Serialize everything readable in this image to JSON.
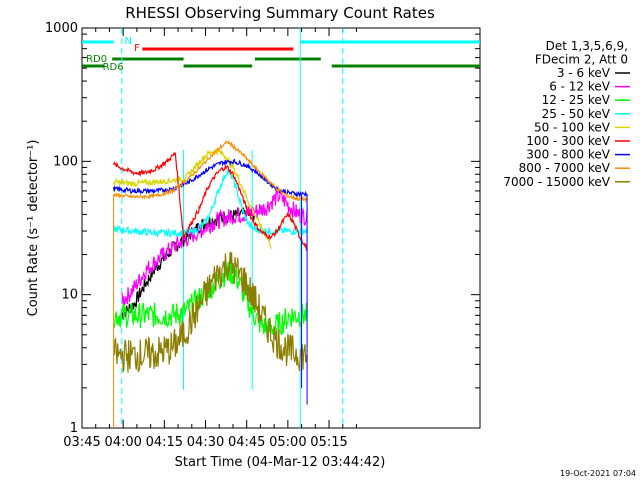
{
  "chart_data": {
    "type": "line",
    "title": "RHESSI Observing Summary Count Rates",
    "xlabel": "Start Time (04-Mar-12 03:44:42)",
    "ylabel": "Count Rate (s⁻¹ detector⁻¹)",
    "yscale": "log",
    "ylim": [
      1,
      1000
    ],
    "xlim_min": [
      225,
      370
    ],
    "xticks": [
      {
        "min": 225,
        "label": "03:45"
      },
      {
        "min": 240,
        "label": "04:00"
      },
      {
        "min": 255,
        "label": "04:15"
      },
      {
        "min": 270,
        "label": "04:30"
      },
      {
        "min": 285,
        "label": "04:45"
      },
      {
        "min": 300,
        "label": "05:00"
      },
      {
        "min": 315,
        "label": "05:15"
      }
    ],
    "yticks": [
      {
        "value": 1,
        "label": "1"
      },
      {
        "value": 10,
        "label": "10"
      },
      {
        "value": 100,
        "label": "100"
      },
      {
        "value": 1000,
        "label": "1000"
      }
    ],
    "legend": {
      "position": "right",
      "header": [
        "Det 1,3,5,6,9,",
        "FDecim 2, Att 0"
      ],
      "entries": [
        {
          "label": "3 - 6 keV",
          "color": "#000000"
        },
        {
          "label": "6 - 12 keV",
          "color": "#ff00ff"
        },
        {
          "label": "12 - 25 keV",
          "color": "#00ff00"
        },
        {
          "label": "25 - 50 keV",
          "color": "#00ffff"
        },
        {
          "label": "50 - 100 keV",
          "color": "#d8d800"
        },
        {
          "label": "100 - 300 keV",
          "color": "#ff0000"
        },
        {
          "label": "300 - 800 keV",
          "color": "#0000ff"
        },
        {
          "label": "800 - 7000 keV",
          "color": "#ff8c00"
        },
        {
          "label": "7000 - 15000 keV",
          "color": "#8b7d00"
        }
      ]
    },
    "series": [
      {
        "name": "3 - 6 keV",
        "color": "#000000",
        "points": [
          [
            239.5,
            7
          ],
          [
            244,
            8.5
          ],
          [
            248,
            12
          ],
          [
            252,
            16
          ],
          [
            256,
            20
          ],
          [
            260,
            24
          ],
          [
            264,
            28
          ],
          [
            266,
            30
          ],
          [
            268,
            33
          ],
          [
            272,
            36
          ],
          [
            276,
            38
          ],
          [
            280,
            39
          ],
          [
            284,
            40
          ],
          [
            288,
            40
          ]
        ]
      },
      {
        "name": "6 - 12 keV",
        "color": "#ff00ff",
        "points": [
          [
            239.5,
            9
          ],
          [
            242,
            10
          ],
          [
            245,
            12
          ],
          [
            248,
            15
          ],
          [
            252,
            18
          ],
          [
            256,
            21
          ],
          [
            260,
            24
          ],
          [
            264,
            27
          ],
          [
            268,
            30
          ],
          [
            272,
            34
          ],
          [
            276,
            37
          ],
          [
            280,
            39
          ],
          [
            284,
            40
          ],
          [
            288,
            42
          ],
          [
            292,
            45
          ],
          [
            295,
            52
          ],
          [
            297,
            55
          ],
          [
            299,
            50
          ],
          [
            301,
            45
          ],
          [
            304,
            40
          ],
          [
            307,
            38
          ]
        ]
      },
      {
        "name": "12 - 25 keV",
        "color": "#00ff00",
        "points": [
          [
            236.5,
            7
          ],
          [
            244,
            7
          ],
          [
            252,
            7
          ],
          [
            258,
            7
          ],
          [
            263,
            7.5
          ],
          [
            267,
            9
          ],
          [
            271,
            11
          ],
          [
            275,
            13
          ],
          [
            278,
            15
          ],
          [
            281,
            14
          ],
          [
            284,
            10
          ],
          [
            287,
            7.5
          ],
          [
            290,
            6
          ],
          [
            293,
            5.5
          ],
          [
            297,
            6
          ],
          [
            301,
            7
          ],
          [
            307,
            7
          ]
        ]
      },
      {
        "name": "25 - 50 keV",
        "color": "#00ffff",
        "points": [
          [
            236.5,
            31
          ],
          [
            244,
            30
          ],
          [
            252,
            29
          ],
          [
            258,
            29
          ],
          [
            262,
            29
          ],
          [
            266,
            30
          ],
          [
            270,
            35
          ],
          [
            272,
            42
          ],
          [
            274,
            55
          ],
          [
            276,
            70
          ],
          [
            278,
            85
          ],
          [
            280,
            75
          ],
          [
            282,
            55
          ],
          [
            284,
            40
          ],
          [
            286,
            33
          ],
          [
            288,
            31
          ],
          [
            293,
            30
          ],
          [
            300,
            30
          ],
          [
            307,
            30
          ]
        ]
      },
      {
        "name": "50 - 100 keV",
        "color": "#d8d800",
        "points": [
          [
            236.5,
            70
          ],
          [
            244,
            68
          ],
          [
            252,
            70
          ],
          [
            258,
            72
          ],
          [
            262,
            74
          ],
          [
            264,
            80
          ],
          [
            266,
            90
          ],
          [
            268,
            100
          ],
          [
            270,
            110
          ],
          [
            272,
            118
          ],
          [
            274,
            120
          ],
          [
            276,
            115
          ],
          [
            278,
            105
          ],
          [
            280,
            90
          ],
          [
            282,
            75
          ],
          [
            284,
            60
          ],
          [
            286,
            48
          ],
          [
            288,
            40
          ],
          [
            290,
            33
          ],
          [
            292,
            28
          ],
          [
            294,
            23
          ]
        ]
      },
      {
        "name": "100 - 300 keV",
        "color": "#ff0000",
        "points": [
          [
            236.5,
            95
          ],
          [
            240,
            88
          ],
          [
            244,
            82
          ],
          [
            248,
            82
          ],
          [
            252,
            88
          ],
          [
            256,
            100
          ],
          [
            259,
            115
          ],
          [
            262,
            27
          ],
          [
            265,
            35
          ],
          [
            268,
            45
          ],
          [
            270,
            58
          ],
          [
            272,
            70
          ],
          [
            274,
            80
          ],
          [
            276,
            88
          ],
          [
            278,
            90
          ],
          [
            280,
            80
          ],
          [
            282,
            65
          ],
          [
            284,
            50
          ],
          [
            286,
            40
          ],
          [
            288,
            34
          ],
          [
            290,
            30
          ],
          [
            292,
            28
          ],
          [
            294,
            27
          ],
          [
            296,
            30
          ],
          [
            298,
            35
          ],
          [
            300,
            40
          ],
          [
            302,
            35
          ],
          [
            304,
            28
          ],
          [
            307,
            22
          ]
        ]
      },
      {
        "name": "300 - 800 keV",
        "color": "#0000ff",
        "points": [
          [
            236.5,
            62
          ],
          [
            244,
            60
          ],
          [
            252,
            60
          ],
          [
            258,
            62
          ],
          [
            264,
            70
          ],
          [
            268,
            80
          ],
          [
            272,
            90
          ],
          [
            276,
            98
          ],
          [
            280,
            100
          ],
          [
            284,
            95
          ],
          [
            288,
            85
          ],
          [
            292,
            72
          ],
          [
            296,
            62
          ],
          [
            300,
            58
          ],
          [
            304,
            57
          ],
          [
            307,
            57
          ]
        ]
      },
      {
        "name": "800 - 7000 keV",
        "color": "#ff8c00",
        "points": [
          [
            236.5,
            56
          ],
          [
            244,
            54
          ],
          [
            252,
            55
          ],
          [
            258,
            60
          ],
          [
            264,
            75
          ],
          [
            268,
            90
          ],
          [
            272,
            110
          ],
          [
            276,
            130
          ],
          [
            278,
            140
          ],
          [
            280,
            130
          ],
          [
            284,
            110
          ],
          [
            288,
            90
          ],
          [
            292,
            75
          ],
          [
            296,
            62
          ],
          [
            300,
            55
          ],
          [
            304,
            52
          ],
          [
            307,
            52
          ]
        ]
      },
      {
        "name": "7000 - 15000 keV",
        "color": "#8b7d00",
        "points": [
          [
            236.5,
            3.5
          ],
          [
            244,
            3.5
          ],
          [
            252,
            3.6
          ],
          [
            258,
            4
          ],
          [
            262,
            5
          ],
          [
            266,
            7
          ],
          [
            270,
            10
          ],
          [
            274,
            14
          ],
          [
            278,
            17
          ],
          [
            280,
            16
          ],
          [
            284,
            13
          ],
          [
            288,
            9
          ],
          [
            292,
            6
          ],
          [
            296,
            4.5
          ],
          [
            300,
            3.8
          ],
          [
            304,
            3.6
          ],
          [
            307,
            3.5
          ]
        ]
      }
    ],
    "annotations": {
      "flags": [
        {
          "label": "N",
          "color": "#00ffff"
        },
        {
          "label": "F",
          "color": "#ff0000"
        },
        {
          "label": "RD0",
          "color": "#008000"
        },
        {
          "label": "RD6",
          "color": "#008000"
        }
      ]
    },
    "footer_date": "19-Oct-2021 07:04"
  }
}
